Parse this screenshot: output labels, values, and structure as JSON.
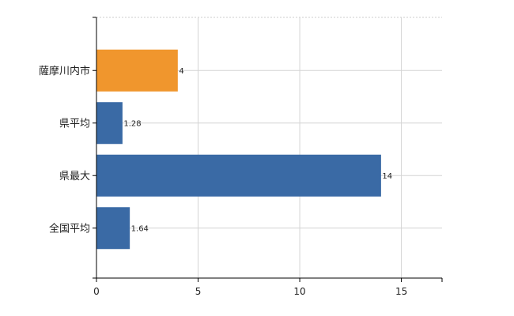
{
  "chart_data": {
    "type": "bar",
    "orientation": "horizontal",
    "categories": [
      "薩摩川内市",
      "県平均",
      "県最大",
      "全国平均"
    ],
    "values": [
      4,
      1.28,
      14,
      1.64
    ],
    "value_labels": [
      "4",
      "1.28",
      "14",
      "1.64"
    ],
    "bar_colors": [
      "#f0962d",
      "#3a6aa5",
      "#3a6aa5",
      "#3a6aa5"
    ],
    "xlim": [
      0,
      17
    ],
    "xticks": [
      0,
      5,
      10,
      15
    ],
    "xtick_labels": [
      "0",
      "5",
      "10",
      "15"
    ],
    "grid": true
  }
}
